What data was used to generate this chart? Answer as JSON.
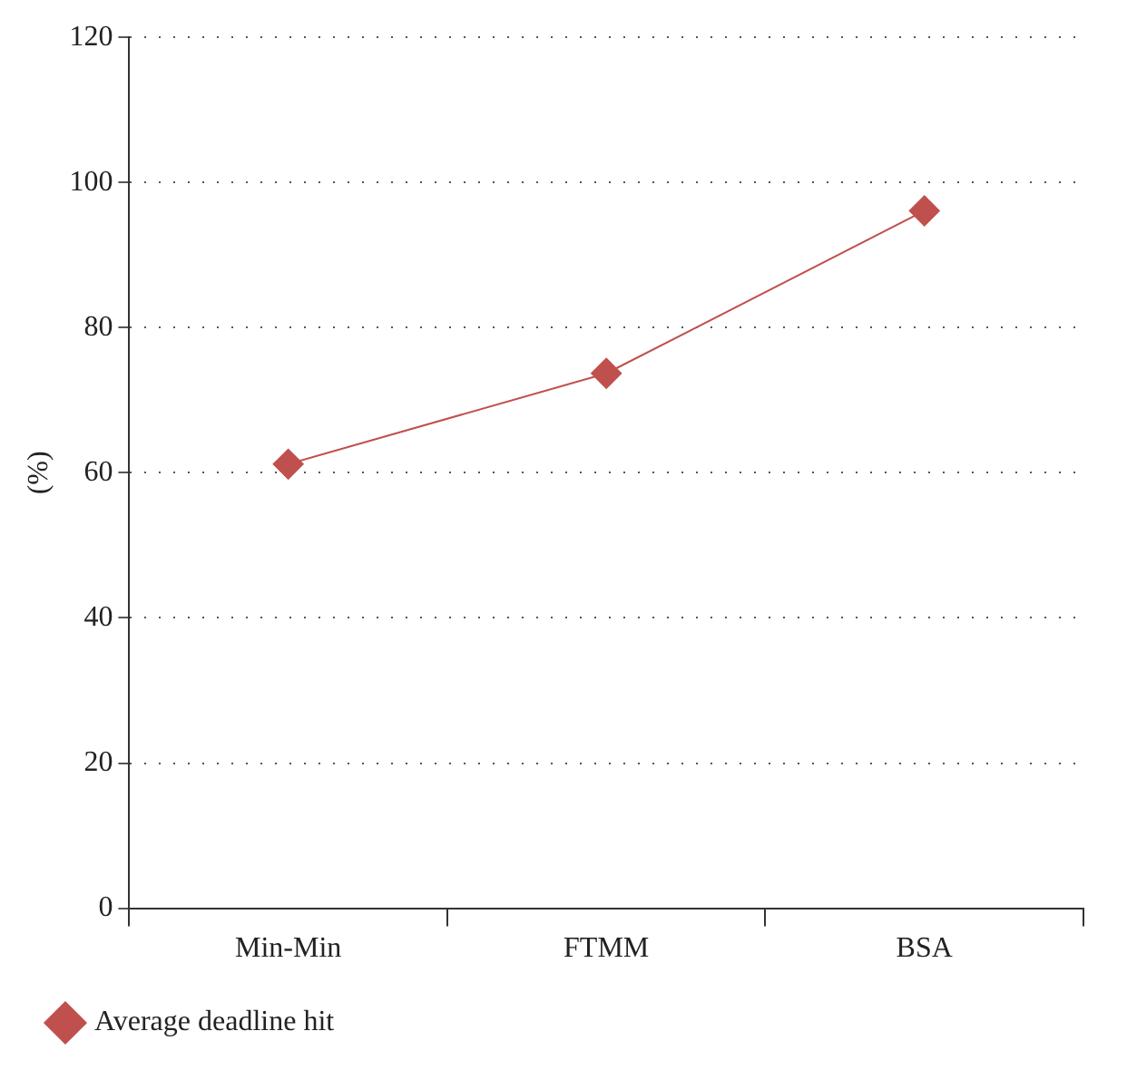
{
  "chart_data": {
    "type": "line",
    "ylabel": "(%)",
    "categories": [
      "Min-Min",
      "FTMM",
      "BSA"
    ],
    "series": [
      {
        "name": "Average deadline hit",
        "color": "#c0504d",
        "values": [
          61.2,
          73.7,
          96.1
        ]
      }
    ],
    "ylim": [
      0,
      120
    ],
    "yticks": [
      0,
      20,
      40,
      60,
      80,
      100,
      120
    ],
    "grid": "y",
    "legend": "bottom left",
    "marker": "diamond",
    "line_style": "solid"
  }
}
